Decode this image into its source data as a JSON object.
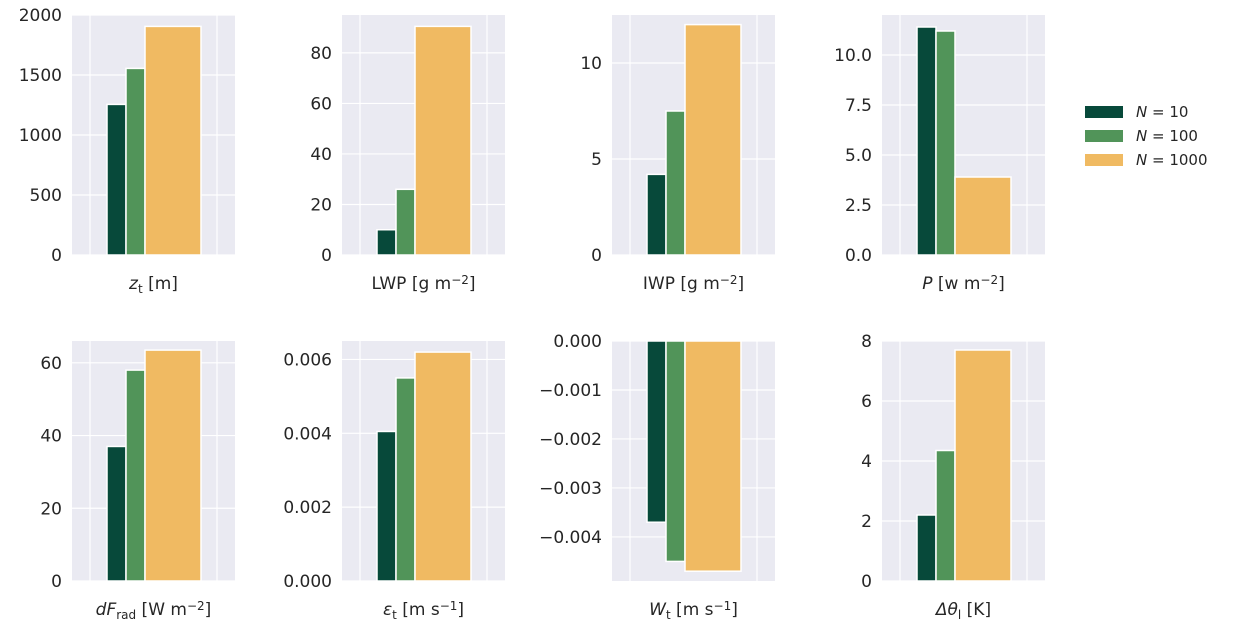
{
  "legend": {
    "items": [
      {
        "label_main": "N",
        "label_rest": " = 10",
        "color": "#07493a"
      },
      {
        "label_main": "N",
        "label_rest": " = 100",
        "color": "#519459"
      },
      {
        "label_main": "N",
        "label_rest": " = 1000",
        "color": "#f0ba62"
      }
    ]
  },
  "chart_data": [
    {
      "type": "bar",
      "series_names": [
        "N = 10",
        "N = 100",
        "N = 1000"
      ],
      "values": [
        1255,
        1555,
        1905
      ],
      "ylim": [
        0,
        2000
      ],
      "yticks": [
        0,
        500,
        1000,
        1500,
        2000
      ],
      "tick_labels": [
        "0",
        "500",
        "1000",
        "1500",
        "2000"
      ],
      "xlabel": {
        "sym": "z",
        "sub": "t",
        "unit": "[m]",
        "sup": ""
      }
    },
    {
      "type": "bar",
      "series_names": [
        "N = 10",
        "N = 100",
        "N = 1000"
      ],
      "values": [
        10,
        26,
        90.5
      ],
      "ylim": [
        0,
        95
      ],
      "yticks": [
        0,
        20,
        40,
        60,
        80
      ],
      "tick_labels": [
        "0",
        "20",
        "40",
        "60",
        "80"
      ],
      "xlabel": {
        "text": "LWP",
        "unit": "[g m",
        "sup": "−2",
        "close": "]"
      }
    },
    {
      "type": "bar",
      "series_names": [
        "N = 10",
        "N = 100",
        "N = 1000"
      ],
      "values": [
        4.2,
        7.5,
        12
      ],
      "ylim": [
        0,
        12.5
      ],
      "yticks": [
        0,
        5,
        10
      ],
      "tick_labels": [
        "0",
        "5",
        "10"
      ],
      "xlabel": {
        "text": "IWP",
        "unit": "[g m",
        "sup": "−2",
        "close": "]"
      }
    },
    {
      "type": "bar",
      "series_names": [
        "N = 10",
        "N = 100",
        "N = 1000"
      ],
      "values": [
        11.4,
        11.2,
        3.9
      ],
      "ylim": [
        0,
        12
      ],
      "yticks": [
        0,
        2.5,
        5.0,
        7.5,
        10.0
      ],
      "tick_labels": [
        "0.0",
        "2.5",
        "5.0",
        "7.5",
        "10.0"
      ],
      "xlabel": {
        "sym": "P",
        "unit": "[w m",
        "sup": "−2",
        "close": "]"
      }
    },
    {
      "type": "bar",
      "series_names": [
        "N = 10",
        "N = 100",
        "N = 1000"
      ],
      "values": [
        37,
        58,
        63.5
      ],
      "ylim": [
        0,
        66
      ],
      "yticks": [
        0,
        20,
        40,
        60
      ],
      "tick_labels": [
        "0",
        "20",
        "40",
        "60"
      ],
      "xlabel": {
        "sym": "dF",
        "sub": "rad",
        "unit": "[W m",
        "sup": "−2",
        "close": "]"
      }
    },
    {
      "type": "bar",
      "series_names": [
        "N = 10",
        "N = 100",
        "N = 1000"
      ],
      "values": [
        0.00405,
        0.0055,
        0.0062
      ],
      "ylim": [
        0,
        0.0065
      ],
      "yticks": [
        0,
        0.002,
        0.004,
        0.006
      ],
      "tick_labels": [
        "0.000",
        "0.002",
        "0.004",
        "0.006"
      ],
      "xlabel": {
        "sym": "ε",
        "sub": "t",
        "unit": "[m s",
        "sup": "−1",
        "close": "]"
      }
    },
    {
      "type": "bar",
      "series_names": [
        "N = 10",
        "N = 100",
        "N = 1000"
      ],
      "values": [
        -0.0037,
        -0.0045,
        -0.0047
      ],
      "ylim": [
        -0.0049,
        0
      ],
      "yticks": [
        -0.004,
        -0.003,
        -0.002,
        -0.001,
        0
      ],
      "tick_labels": [
        "−0.004",
        "−0.003",
        "−0.002",
        "−0.001",
        "0.000"
      ],
      "xlabel": {
        "sym": "W",
        "sub": "t",
        "unit": "[m s",
        "sup": "−1",
        "close": "]"
      }
    },
    {
      "type": "bar",
      "series_names": [
        "N = 10",
        "N = 100",
        "N = 1000"
      ],
      "values": [
        2.2,
        4.35,
        7.7
      ],
      "ylim": [
        0,
        8
      ],
      "yticks": [
        0,
        2,
        4,
        6,
        8
      ],
      "tick_labels": [
        "0",
        "2",
        "4",
        "6",
        "8"
      ],
      "xlabel": {
        "sym": "Δθ",
        "sub": "l",
        "unit": "[K]",
        "sup": ""
      }
    }
  ]
}
